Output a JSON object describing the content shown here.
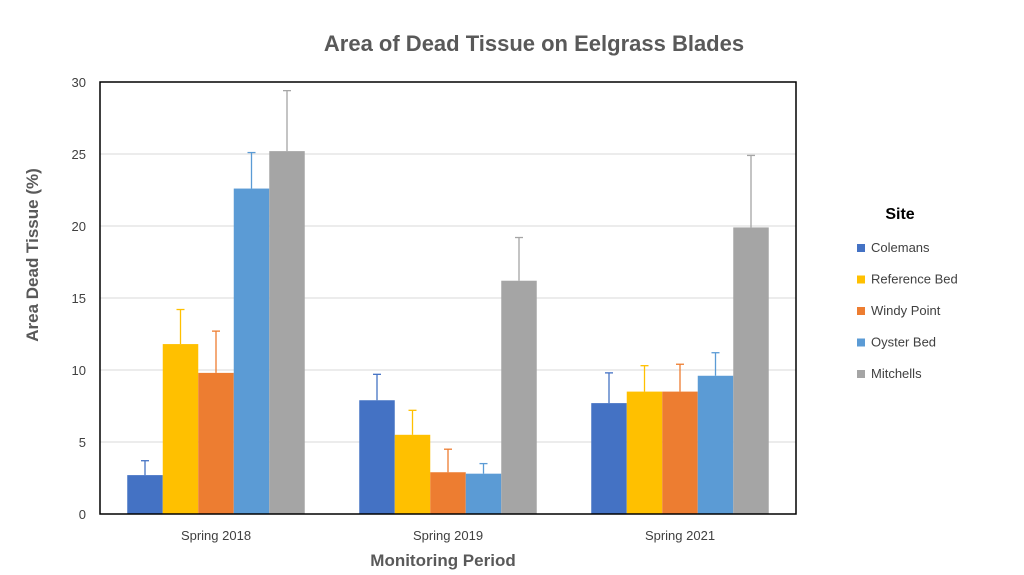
{
  "chart_data": {
    "type": "bar",
    "title": "Area of Dead Tissue on Eelgrass Blades",
    "xlabel": "Monitoring Period",
    "ylabel": "Area Dead Tissue (%)",
    "ylim": [
      0,
      30
    ],
    "yticks": [
      0,
      5,
      10,
      15,
      20,
      25,
      30
    ],
    "grid": true,
    "legend_title": "Site",
    "legend_position": "right",
    "categories": [
      "Spring 2018",
      "Spring 2019",
      "Spring 2021"
    ],
    "series": [
      {
        "name": "Colemans",
        "color": "#4472C4",
        "values": [
          2.7,
          7.9,
          7.7
        ],
        "errors": [
          1.0,
          1.8,
          2.1
        ]
      },
      {
        "name": "Reference Bed",
        "color": "#FFC000",
        "values": [
          11.8,
          5.5,
          8.5
        ],
        "errors": [
          2.4,
          1.7,
          1.8
        ]
      },
      {
        "name": "Windy Point",
        "color": "#ED7D31",
        "values": [
          9.8,
          2.9,
          8.5
        ],
        "errors": [
          2.9,
          1.6,
          1.9
        ]
      },
      {
        "name": "Oyster Bed",
        "color": "#5B9BD5",
        "values": [
          22.6,
          2.8,
          9.6
        ],
        "errors": [
          2.5,
          0.7,
          1.6
        ]
      },
      {
        "name": "Mitchells",
        "color": "#A5A5A5",
        "values": [
          25.2,
          16.2,
          19.9
        ],
        "errors": [
          4.2,
          3.0,
          5.0
        ]
      }
    ]
  }
}
